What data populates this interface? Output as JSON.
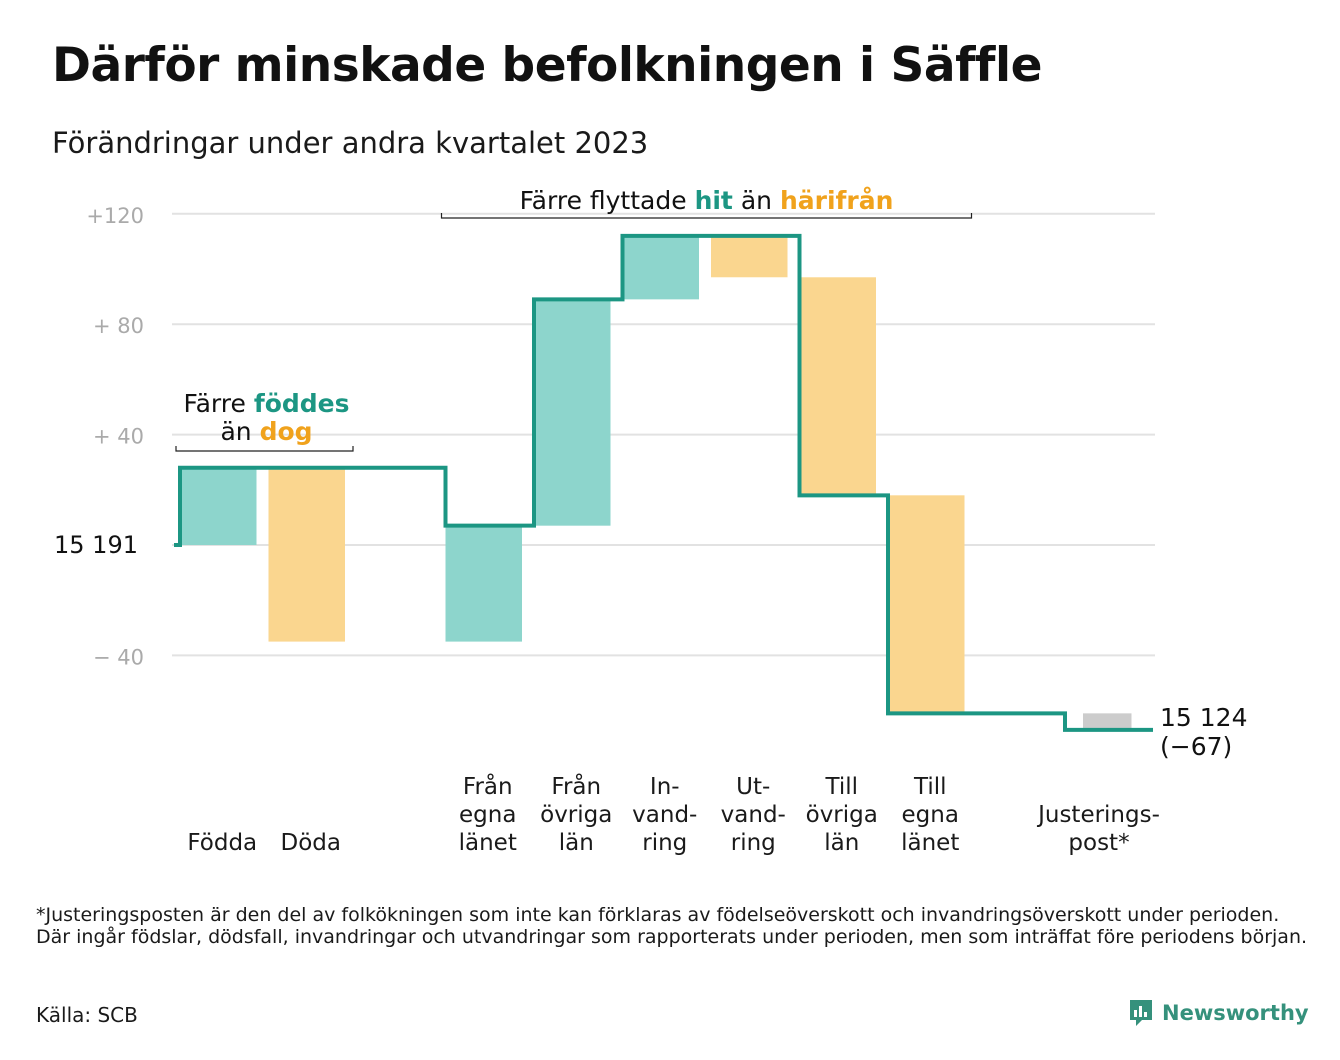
{
  "header": {
    "title": "Därför minskade befolkningen i Säffle",
    "subtitle": "Förändringar under andra kvartalet 2023"
  },
  "chart_data": {
    "type": "waterfall",
    "start_value": 15191,
    "start_label": "15  191",
    "end_value": 15124,
    "end_label": "15 124",
    "change_label": "(−67)",
    "y_relative_range": [
      -80,
      125
    ],
    "y_ticks": [
      {
        "value": 120,
        "label": "+120"
      },
      {
        "value": 80,
        "label": "+  80"
      },
      {
        "value": 40,
        "label": "+  40"
      },
      {
        "value": -40,
        "label": "−  40"
      }
    ],
    "grid": true,
    "steps": [
      {
        "category": "Födda",
        "label_lines": [
          "Födda"
        ],
        "kind": "in",
        "value": 28
      },
      {
        "category": "Döda",
        "label_lines": [
          "Döda"
        ],
        "kind": "out",
        "value": -63
      },
      {
        "category": "Från egna länet",
        "label_lines": [
          "Från",
          "egna",
          "länet"
        ],
        "kind": "in",
        "value": 42
      },
      {
        "category": "Från övriga län",
        "label_lines": [
          "Från",
          "övriga",
          "län"
        ],
        "kind": "in",
        "value": 82
      },
      {
        "category": "Invandring",
        "label_lines": [
          "In-",
          "vand-",
          "ring"
        ],
        "kind": "in",
        "value": 23
      },
      {
        "category": "Utvandring",
        "label_lines": [
          "Ut-",
          "vand-",
          "ring"
        ],
        "kind": "out",
        "value": -15
      },
      {
        "category": "Till övriga län",
        "label_lines": [
          "Till",
          "övriga",
          "län"
        ],
        "kind": "out",
        "value": -79
      },
      {
        "category": "Till egna länet",
        "label_lines": [
          "Till",
          "egna",
          "länet"
        ],
        "kind": "out",
        "value": -79
      },
      {
        "category": "Justeringspost*",
        "label_lines": [
          "Justerings-",
          "post*"
        ],
        "kind": "adjust",
        "value": -6
      }
    ],
    "annotations": [
      {
        "id": "births",
        "parts": [
          [
            "Färre ",
            "plain"
          ],
          [
            "föddes",
            "in"
          ]
        ],
        "parts2": [
          [
            "än ",
            "plain"
          ],
          [
            "dog",
            "out"
          ]
        ]
      },
      {
        "id": "moves",
        "parts": [
          [
            "Färre flyttade ",
            "plain"
          ],
          [
            "hit",
            "in"
          ],
          [
            " än ",
            "plain"
          ],
          [
            "härifrån",
            "out"
          ]
        ]
      }
    ],
    "colors": {
      "in_fill": "#8dd5cc",
      "out_fill": "#fad68f",
      "adjust_fill": "#cccccc",
      "line": "#1c9683",
      "in_text": "#1c9683",
      "out_text": "#f0a21c",
      "grid": "#e2e2e2",
      "tick_text": "#aaaaaa"
    }
  },
  "footer": {
    "footnote": "*Justeringsposten är den del av folkökningen som inte kan förklaras av födelseöverskott och invandringsöverskott under perioden. Där ingår födslar, dödsfall, invandringar och utvandringar som rapporterats under perioden, men som inträffat före periodens början.",
    "source": "Källa: SCB",
    "brand": "Newsworthy"
  }
}
